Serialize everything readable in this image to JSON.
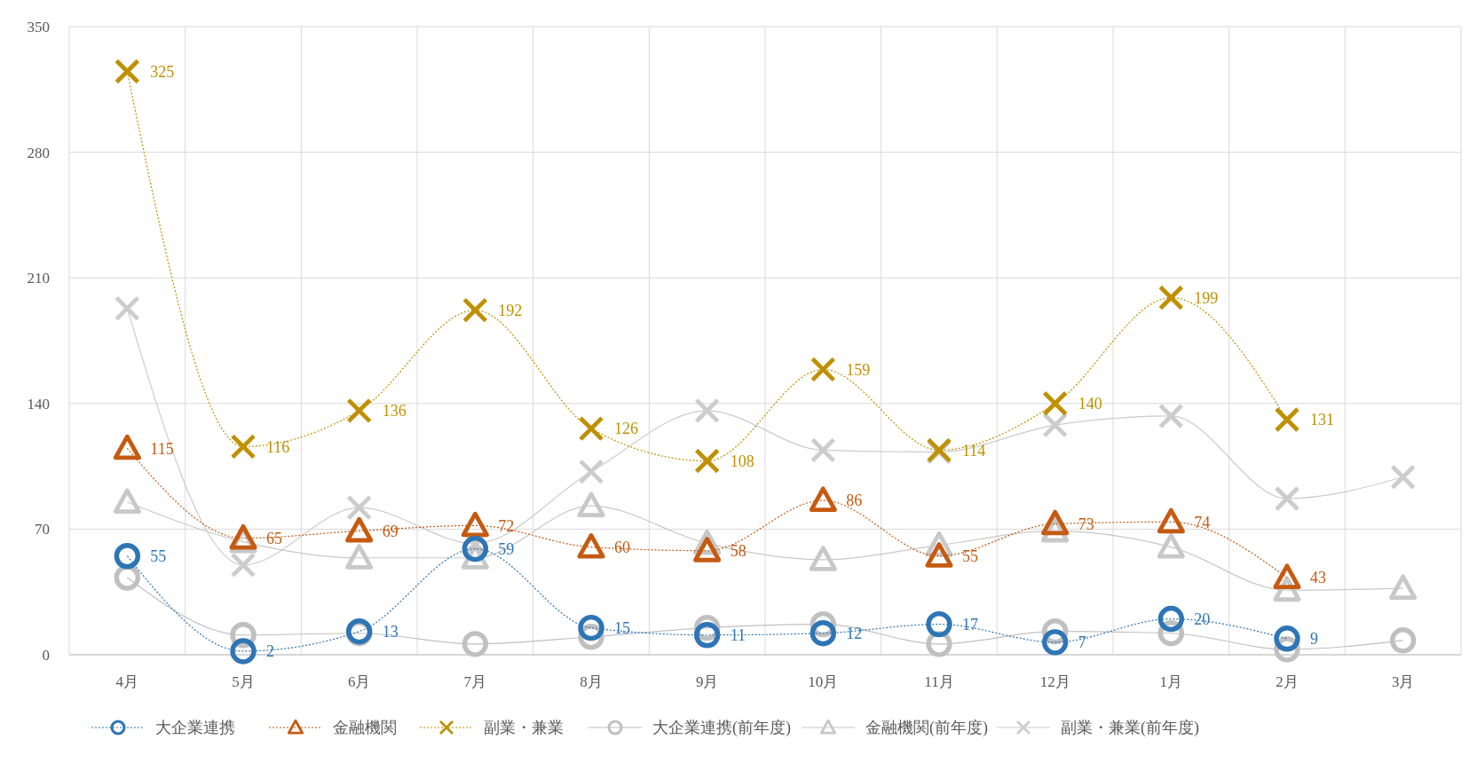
{
  "chart_data": {
    "type": "line",
    "categories": [
      "4月",
      "5月",
      "6月",
      "7月",
      "8月",
      "9月",
      "10月",
      "11月",
      "12月",
      "1月",
      "2月",
      "3月"
    ],
    "ylim": [
      0,
      350
    ],
    "yticks": [
      0,
      70,
      140,
      210,
      280,
      350
    ],
    "grid": true,
    "legend": "bottom",
    "series": [
      {
        "name": "大企業連携",
        "color": "#2e75b6",
        "marker": "circle",
        "line_style": "dotted",
        "values": [
          55,
          2,
          13,
          59,
          15,
          11,
          12,
          17,
          7,
          20,
          9,
          null
        ],
        "value_labels": [
          "55",
          "2",
          "13",
          "59",
          "15",
          "11",
          "12",
          "17",
          "7",
          "20",
          "9",
          null
        ]
      },
      {
        "name": "金融機関",
        "color": "#c55a11",
        "marker": "triangle",
        "line_style": "dotted",
        "values": [
          115,
          65,
          69,
          72,
          60,
          58,
          86,
          55,
          73,
          74,
          43,
          null
        ],
        "value_labels": [
          "115",
          "65",
          "69",
          "72",
          "60",
          "58",
          "86",
          "55",
          "73",
          "74",
          "43",
          null
        ]
      },
      {
        "name": "副業・兼業",
        "color": "#bf9000",
        "marker": "cross",
        "line_style": "dotted",
        "values": [
          325,
          116,
          136,
          192,
          126,
          108,
          159,
          114,
          140,
          199,
          131,
          null
        ],
        "value_labels": [
          "325",
          "116",
          "136",
          "192",
          "126",
          "108",
          "159",
          "114",
          "140",
          "199",
          "131",
          null
        ]
      },
      {
        "name": "大企業連携(前年度)",
        "color": "#c0c0c0",
        "marker": "circle",
        "line_style": "solid",
        "values": [
          43,
          11,
          12,
          6,
          10,
          15,
          17,
          6,
          13,
          12,
          3,
          8
        ]
      },
      {
        "name": "金融機関(前年度)",
        "color": "#c8c8c8",
        "marker": "triangle",
        "line_style": "solid",
        "values": [
          85,
          63,
          54,
          54,
          83,
          62,
          53,
          61,
          69,
          60,
          36,
          37
        ]
      },
      {
        "name": "副業・兼業(前年度)",
        "color": "#cccccc",
        "marker": "cross",
        "line_style": "solid",
        "values": [
          193,
          50,
          82,
          62,
          102,
          136,
          114,
          113,
          128,
          133,
          87,
          99
        ]
      }
    ]
  }
}
